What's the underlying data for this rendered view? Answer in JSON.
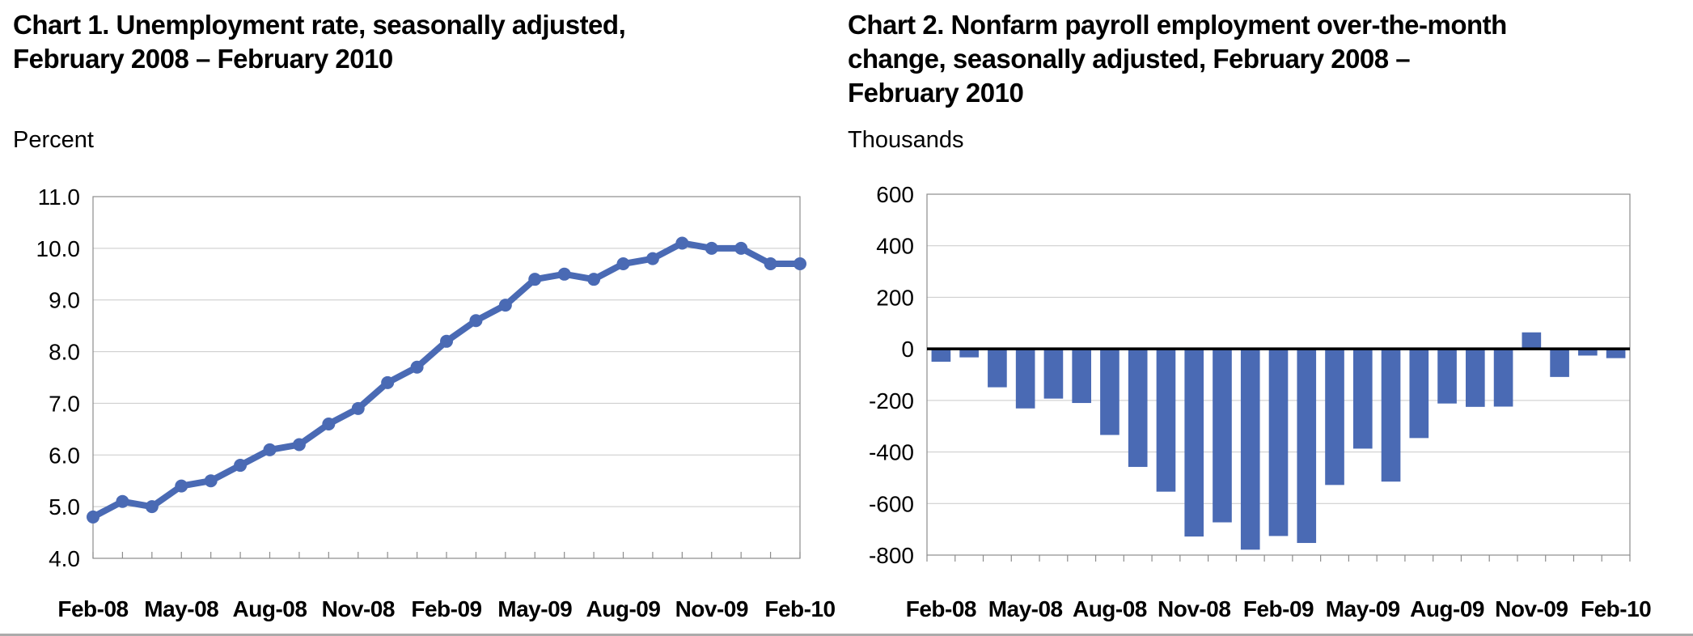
{
  "page": {
    "background_color": "#FFFFFF",
    "bottom_rule_color": "#ABABAB"
  },
  "chart_data": [
    {
      "type": "line",
      "title": "Chart 1. Unemployment rate, seasonally adjusted, February 2008 – February 2010",
      "title_lines": [
        "Chart 1. Unemployment rate, seasonally adjusted,",
        "February 2008 – February 2010"
      ],
      "unit_label": "Percent",
      "xlabel": "",
      "ylabel": "Percent",
      "categories": [
        "Feb-08",
        "Mar-08",
        "Apr-08",
        "May-08",
        "Jun-08",
        "Jul-08",
        "Aug-08",
        "Sep-08",
        "Oct-08",
        "Nov-08",
        "Dec-08",
        "Jan-09",
        "Feb-09",
        "Mar-09",
        "Apr-09",
        "May-09",
        "Jun-09",
        "Jul-09",
        "Aug-09",
        "Sep-09",
        "Oct-09",
        "Nov-09",
        "Dec-09",
        "Jan-10",
        "Feb-10"
      ],
      "values": [
        4.8,
        5.1,
        5.0,
        5.4,
        5.5,
        5.8,
        6.1,
        6.2,
        6.6,
        6.9,
        7.4,
        7.7,
        8.2,
        8.6,
        8.9,
        9.4,
        9.5,
        9.4,
        9.7,
        9.8,
        10.1,
        10.0,
        10.0,
        9.7,
        9.7
      ],
      "x_tick_labels": [
        "Feb-08",
        "May-08",
        "Aug-08",
        "Nov-08",
        "Feb-09",
        "May-09",
        "Aug-09",
        "Nov-09",
        "Feb-10"
      ],
      "x_label_every": 3,
      "ylim": [
        4.0,
        11.0
      ],
      "ytick_step": 1.0,
      "ytick_decimals": 1,
      "grid": true,
      "legend": "none",
      "series_color": "#4A6AB4",
      "gridline_color": "#C9C9C9",
      "axis_box_color": "#8C8C8C"
    },
    {
      "type": "bar",
      "title": "Chart 2. Nonfarm payroll employment over-the-month change, seasonally adjusted, February 2008 – February 2010",
      "title_lines": [
        "Chart 2. Nonfarm payroll employment over-the-month",
        "change, seasonally adjusted, February 2008 –",
        "February 2010"
      ],
      "unit_label": "Thousands",
      "xlabel": "",
      "ylabel": "Thousands",
      "categories": [
        "Feb-08",
        "Mar-08",
        "Apr-08",
        "May-08",
        "Jun-08",
        "Jul-08",
        "Aug-08",
        "Sep-08",
        "Oct-08",
        "Nov-08",
        "Dec-08",
        "Jan-09",
        "Feb-09",
        "Mar-09",
        "Apr-09",
        "May-09",
        "Jun-09",
        "Jul-09",
        "Aug-09",
        "Sep-09",
        "Oct-09",
        "Nov-09",
        "Dec-09",
        "Jan-10",
        "Feb-10"
      ],
      "values": [
        -50,
        -33,
        -149,
        -231,
        -193,
        -210,
        -334,
        -458,
        -554,
        -728,
        -673,
        -779,
        -726,
        -753,
        -528,
        -387,
        -515,
        -346,
        -212,
        -225,
        -224,
        64,
        -109,
        -26,
        -36
      ],
      "x_tick_labels": [
        "Feb-08",
        "May-08",
        "Aug-08",
        "Nov-08",
        "Feb-09",
        "May-09",
        "Aug-09",
        "Nov-09",
        "Feb-10"
      ],
      "x_label_every": 3,
      "ylim": [
        -800,
        600
      ],
      "ytick_step": 200,
      "ytick_decimals": 0,
      "grid": true,
      "legend": "none",
      "zero_line": true,
      "zero_line_color": "#000000",
      "series_color": "#4A6AB4",
      "gridline_color": "#C9C9C9",
      "axis_box_color": "#8C8C8C"
    }
  ]
}
